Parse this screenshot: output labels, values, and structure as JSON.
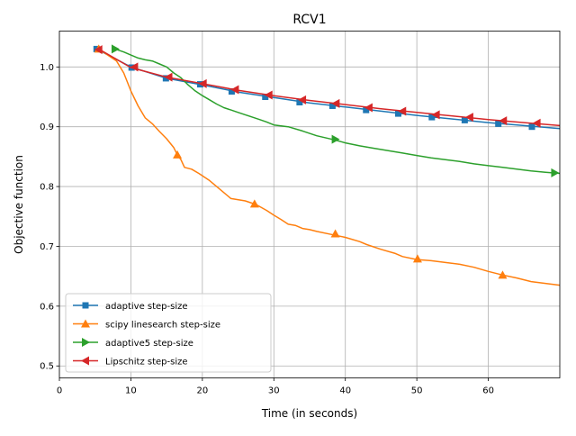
{
  "chart_data": {
    "type": "line",
    "title": "RCV1",
    "xlabel": "Time (in seconds)",
    "ylabel": "Objective function",
    "xlim": [
      0,
      70
    ],
    "ylim": [
      0.48,
      1.06
    ],
    "xticks": [
      0,
      10,
      20,
      30,
      40,
      50,
      60
    ],
    "yticks": [
      0.5,
      0.6,
      0.7,
      0.8,
      0.9,
      1.0
    ],
    "xtick_labels": [
      "0",
      "10",
      "20",
      "30",
      "40",
      "50",
      "60"
    ],
    "ytick_labels": [
      "0.5",
      "0.6",
      "0.7",
      "0.8",
      "0.9",
      "1.0"
    ],
    "grid": true,
    "legend_position": "lower-left",
    "series": [
      {
        "name": "adaptive step-size",
        "color": "#1f77b4",
        "marker": "square",
        "x": [
          5.2,
          10,
          15,
          20,
          25,
          30,
          35,
          40,
          45,
          50,
          55,
          60,
          65,
          70
        ],
        "y": [
          1.03,
          1.0,
          0.981,
          0.97,
          0.958,
          0.949,
          0.94,
          0.933,
          0.926,
          0.919,
          0.913,
          0.907,
          0.902,
          0.897
        ],
        "marker_x": [
          5.2,
          10.1,
          14.9,
          19.7,
          24.1,
          28.8,
          33.6,
          38.2,
          42.9,
          47.4,
          52.1,
          56.7,
          61.4,
          66.1
        ],
        "marker_y": [
          1.03,
          0.999,
          0.981,
          0.971,
          0.959,
          0.95,
          0.941,
          0.935,
          0.928,
          0.922,
          0.916,
          0.911,
          0.905,
          0.9
        ]
      },
      {
        "name": "scipy linesearch step-size",
        "color": "#ff7f0e",
        "marker": "triangle-up",
        "x": [
          5.5,
          8,
          9,
          10,
          11,
          12,
          13,
          14,
          15,
          16,
          16.5,
          17,
          17.5,
          18.5,
          19.5,
          21,
          22,
          24,
          26,
          27.5,
          29,
          30,
          31,
          32,
          33,
          34,
          35,
          36,
          38,
          40,
          42,
          43,
          45,
          47,
          48,
          50,
          52,
          54,
          56,
          58,
          60,
          62,
          64,
          66,
          68,
          70
        ],
        "y": [
          1.03,
          1.01,
          0.99,
          0.96,
          0.935,
          0.915,
          0.905,
          0.892,
          0.88,
          0.865,
          0.853,
          0.845,
          0.832,
          0.829,
          0.822,
          0.81,
          0.8,
          0.78,
          0.776,
          0.77,
          0.76,
          0.752,
          0.745,
          0.737,
          0.735,
          0.73,
          0.728,
          0.725,
          0.72,
          0.715,
          0.708,
          0.703,
          0.695,
          0.688,
          0.683,
          0.678,
          0.676,
          0.673,
          0.67,
          0.665,
          0.658,
          0.652,
          0.647,
          0.641,
          0.638,
          0.635
        ],
        "marker_x": [
          5.5,
          16.5,
          27.3,
          38.6,
          50.1,
          62
        ],
        "marker_y": [
          1.03,
          0.853,
          0.771,
          0.721,
          0.679,
          0.652
        ]
      },
      {
        "name": "adaptive5 step-size",
        "color": "#2ca02c",
        "marker": "triangle-right",
        "x": [
          7.8,
          9,
          10,
          11,
          12,
          13,
          14,
          15,
          16,
          17,
          18,
          19,
          20,
          21,
          22,
          23,
          24,
          25,
          26,
          27,
          28,
          29,
          30,
          32,
          34,
          36,
          38.5,
          40,
          42,
          44,
          46,
          48,
          50,
          52,
          54,
          56,
          58,
          60,
          62,
          64,
          66,
          68,
          70
        ],
        "y": [
          1.03,
          1.025,
          1.02,
          1.015,
          1.012,
          1.01,
          1.005,
          1.0,
          0.99,
          0.982,
          0.97,
          0.96,
          0.952,
          0.945,
          0.938,
          0.932,
          0.928,
          0.924,
          0.92,
          0.916,
          0.912,
          0.908,
          0.903,
          0.9,
          0.893,
          0.885,
          0.878,
          0.873,
          0.868,
          0.864,
          0.86,
          0.856,
          0.852,
          0.848,
          0.845,
          0.842,
          0.838,
          0.835,
          0.832,
          0.829,
          0.826,
          0.824,
          0.822
        ],
        "marker_x": [
          7.8,
          38.6,
          69.3
        ],
        "marker_y": [
          1.03,
          0.879,
          0.823
        ]
      },
      {
        "name": "Lipschitz step-size",
        "color": "#d62728",
        "marker": "triangle-left",
        "x": [
          5.5,
          10,
          15,
          20,
          25,
          30,
          35,
          40,
          45,
          50,
          55,
          60,
          65,
          70
        ],
        "y": [
          1.03,
          0.999,
          0.983,
          0.972,
          0.961,
          0.952,
          0.944,
          0.937,
          0.93,
          0.924,
          0.918,
          0.912,
          0.907,
          0.902
        ],
        "marker_x": [
          5.5,
          10.5,
          15.3,
          20.1,
          24.6,
          29.3,
          34.0,
          38.7,
          43.3,
          48.0,
          52.7,
          57.4,
          62.1,
          66.8
        ],
        "marker_y": [
          1.029,
          1.0,
          0.983,
          0.972,
          0.962,
          0.953,
          0.945,
          0.939,
          0.932,
          0.926,
          0.92,
          0.916,
          0.91,
          0.906
        ]
      }
    ]
  }
}
